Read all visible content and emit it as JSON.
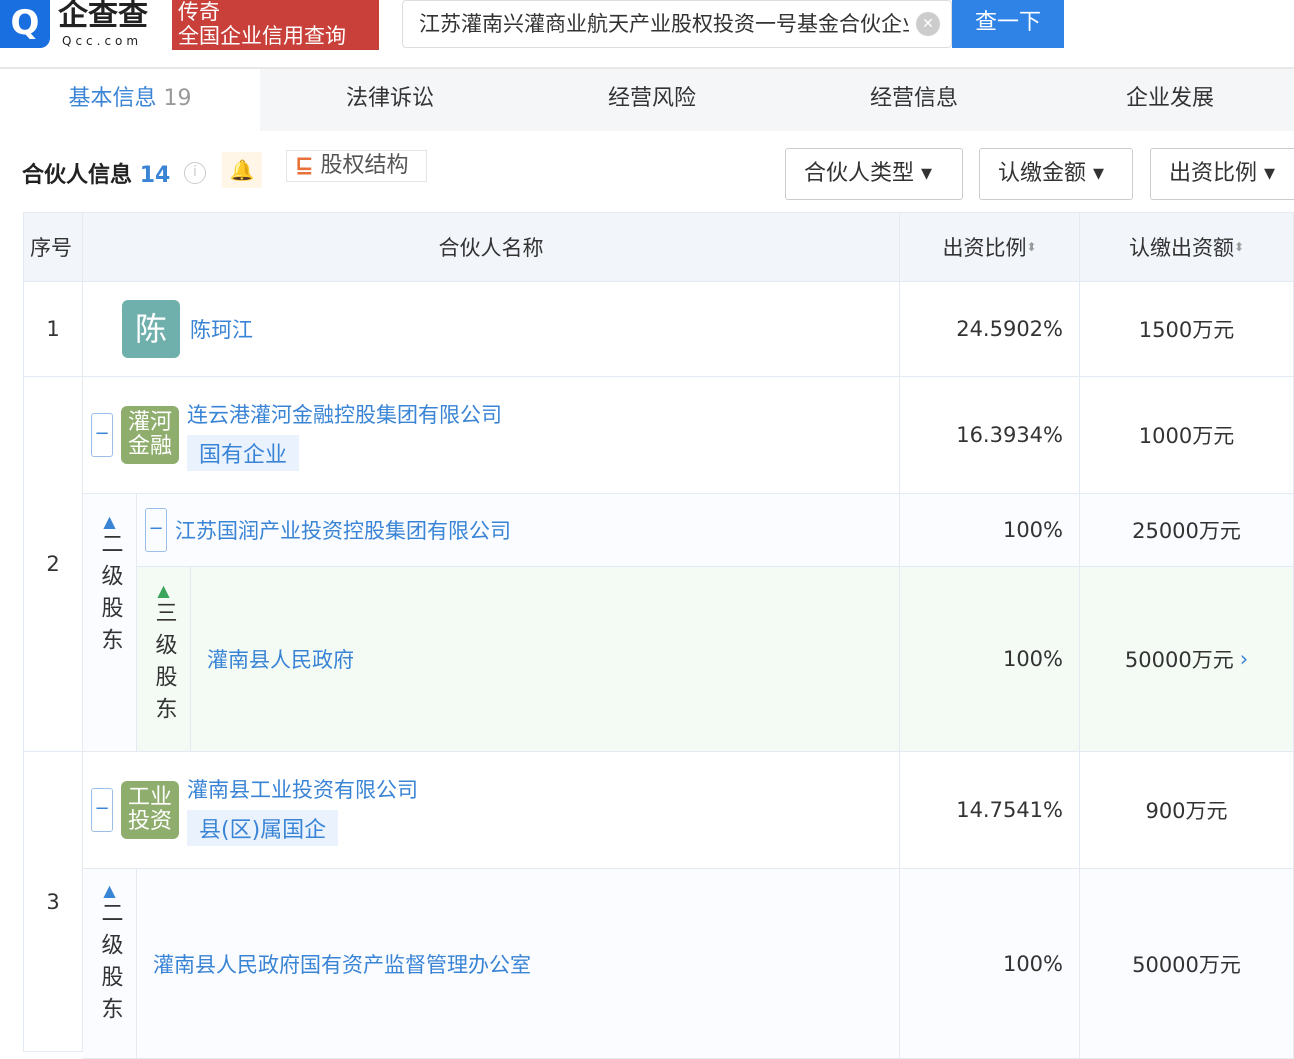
{
  "header": {
    "logo_text": "企查查",
    "logo_sub": "Qcc.com",
    "promo_line1": "传奇",
    "promo_line2": "全国企业信用查询",
    "search_value": "江苏灌南兴灌商业航天产业股权投资一号基金合伙企业",
    "search_button": "查一下"
  },
  "tabs": [
    {
      "label": "基本信息",
      "count": "19"
    },
    {
      "label": "法律诉讼"
    },
    {
      "label": "经营风险"
    },
    {
      "label": "经营信息"
    },
    {
      "label": "企业发展"
    }
  ],
  "section": {
    "title": "合伙人信息",
    "count": "14",
    "equity_button": "股权结构",
    "filters": [
      "合伙人类型",
      "认缴金额",
      "出资比例"
    ]
  },
  "table": {
    "headers": [
      "序号",
      "合伙人名称",
      "出资比例",
      "认缴出资额"
    ],
    "rows": [
      {
        "index": "1",
        "avatar": "陈",
        "name": "陈珂江",
        "ratio": "24.5902%",
        "amount": "1500万元"
      },
      {
        "index": "2",
        "avatar": "灌河金融",
        "name": "连云港灌河金融控股集团有限公司",
        "tag": "国有企业",
        "ratio": "16.3934%",
        "amount": "1000万元",
        "level2_label": "二级股东",
        "level2": {
          "name": "江苏国润产业投资控股集团有限公司",
          "ratio": "100%",
          "amount": "25000万元"
        },
        "level3_label": "三级股东",
        "level3": {
          "name": "灌南县人民政府",
          "ratio": "100%",
          "amount": "50000万元"
        }
      },
      {
        "index": "3",
        "avatar": "工业投资",
        "name": "灌南县工业投资有限公司",
        "tag": "县(区)属国企",
        "ratio": "14.7541%",
        "amount": "900万元",
        "level2_label": "二级股东",
        "level2": {
          "name": "灌南县人民政府国有资产监督管理办公室",
          "ratio": "100%",
          "amount": "50000万元"
        }
      }
    ]
  },
  "colors": {
    "accent": "#3a84d6",
    "promo": "#c9403b",
    "search_button": "#2f83e6"
  }
}
